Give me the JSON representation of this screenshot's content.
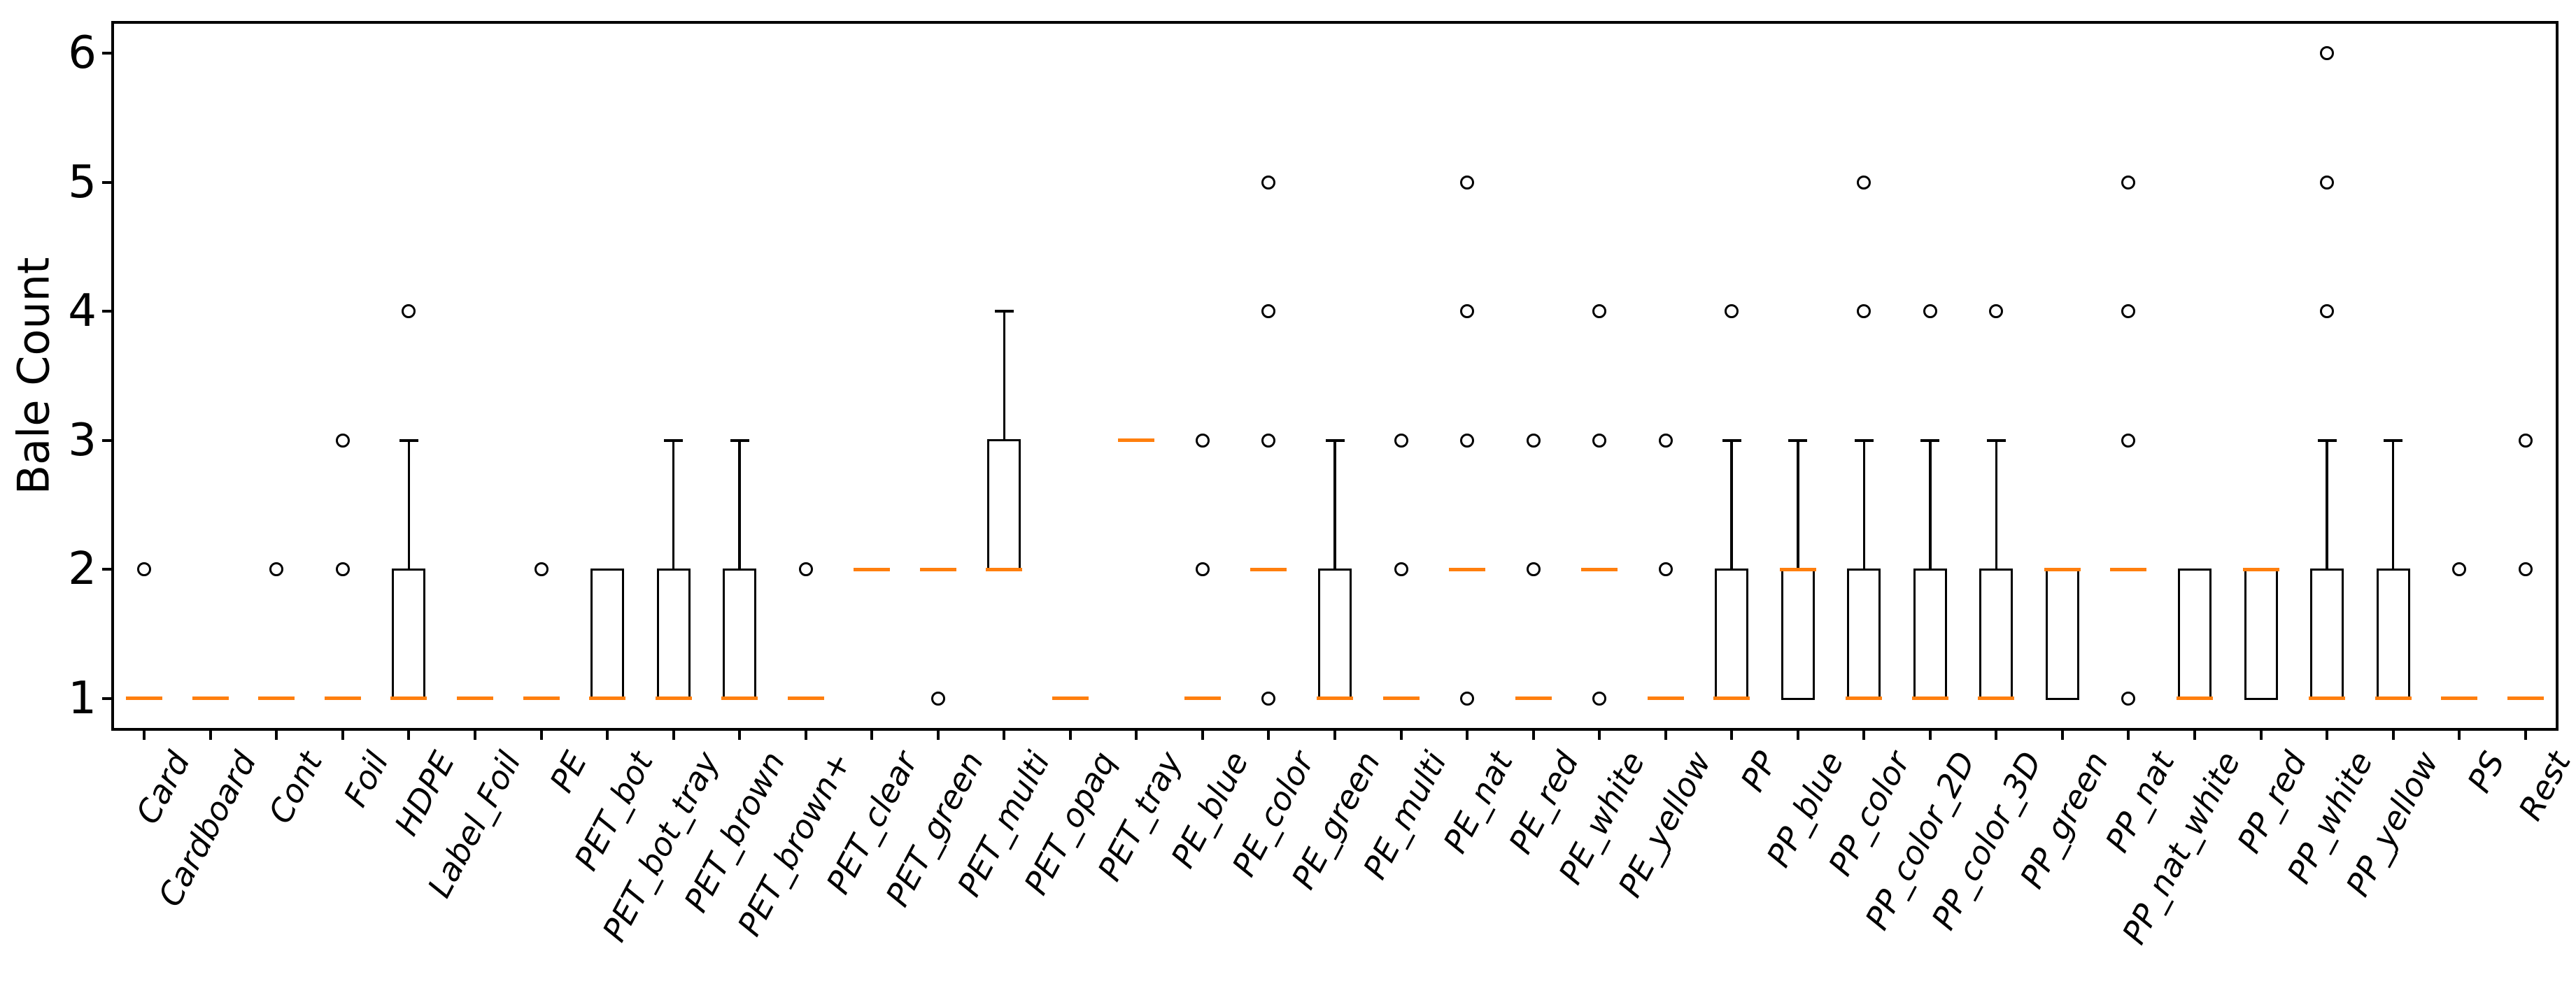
{
  "figure": {
    "background": "#ffffff",
    "axis_color": "#000000"
  },
  "chart_data": {
    "type": "boxplot",
    "title": "",
    "xlabel": "",
    "ylabel": "Bale Count",
    "ylim": [
      0.75,
      6.25
    ],
    "yticks": [
      1,
      2,
      3,
      4,
      5,
      6
    ],
    "grid": false,
    "legend": "none",
    "median_color": "#ff7f0e",
    "box_edge_color": "#000000",
    "categories": [
      "Card",
      "Cardboard",
      "Cont",
      "Foil",
      "HDPE",
      "Label_Foil",
      "PE",
      "PET_bot",
      "PET_bot_tray",
      "PET_brown",
      "PET_brown+",
      "PET_clear",
      "PET_green",
      "PET_multi",
      "PET_opaq",
      "PET_tray",
      "PE_blue",
      "PE_color",
      "PE_green",
      "PE_multi",
      "PE_nat",
      "PE_red",
      "PE_white",
      "PE_yellow",
      "PP",
      "PP_blue",
      "PP_color",
      "PP_color_2D",
      "PP_color_3D",
      "PP_green",
      "PP_nat",
      "PP_nat_white",
      "PP_red",
      "PP_white",
      "PP_yellow",
      "PS",
      "Rest"
    ],
    "series": [
      {
        "label": "Card",
        "whislo": 1,
        "q1": 1,
        "med": 1,
        "q3": 1,
        "whishi": 1,
        "outliers": [
          2
        ]
      },
      {
        "label": "Cardboard",
        "whislo": 1,
        "q1": 1,
        "med": 1,
        "q3": 1,
        "whishi": 1,
        "outliers": []
      },
      {
        "label": "Cont",
        "whislo": 1,
        "q1": 1,
        "med": 1,
        "q3": 1,
        "whishi": 1,
        "outliers": [
          2
        ]
      },
      {
        "label": "Foil",
        "whislo": 1,
        "q1": 1,
        "med": 1,
        "q3": 1,
        "whishi": 1,
        "outliers": [
          2,
          3
        ]
      },
      {
        "label": "HDPE",
        "whislo": 1,
        "q1": 1,
        "med": 1,
        "q3": 2,
        "whishi": 3,
        "outliers": [
          4
        ]
      },
      {
        "label": "Label_Foil",
        "whislo": 1,
        "q1": 1,
        "med": 1,
        "q3": 1,
        "whishi": 1,
        "outliers": []
      },
      {
        "label": "PE",
        "whislo": 1,
        "q1": 1,
        "med": 1,
        "q3": 1,
        "whishi": 1,
        "outliers": [
          2
        ]
      },
      {
        "label": "PET_bot",
        "whislo": 1,
        "q1": 1,
        "med": 1,
        "q3": 2,
        "whishi": 2,
        "outliers": []
      },
      {
        "label": "PET_bot_tray",
        "whislo": 1,
        "q1": 1,
        "med": 1,
        "q3": 2,
        "whishi": 3,
        "outliers": []
      },
      {
        "label": "PET_brown",
        "whislo": 1,
        "q1": 1,
        "med": 1,
        "q3": 2,
        "whishi": 3,
        "outliers": []
      },
      {
        "label": "PET_brown+",
        "whislo": 1,
        "q1": 1,
        "med": 1,
        "q3": 1,
        "whishi": 1,
        "outliers": [
          2
        ]
      },
      {
        "label": "PET_clear",
        "whislo": 2,
        "q1": 2,
        "med": 2,
        "q3": 2,
        "whishi": 2,
        "outliers": []
      },
      {
        "label": "PET_green",
        "whislo": 2,
        "q1": 2,
        "med": 2,
        "q3": 2,
        "whishi": 2,
        "outliers": [
          1
        ]
      },
      {
        "label": "PET_multi",
        "whislo": 2,
        "q1": 2,
        "med": 2,
        "q3": 3,
        "whishi": 4,
        "outliers": []
      },
      {
        "label": "PET_opaq",
        "whislo": 1,
        "q1": 1,
        "med": 1,
        "q3": 1,
        "whishi": 1,
        "outliers": []
      },
      {
        "label": "PET_tray",
        "whislo": 3,
        "q1": 3,
        "med": 3,
        "q3": 3,
        "whishi": 3,
        "outliers": []
      },
      {
        "label": "PE_blue",
        "whislo": 1,
        "q1": 1,
        "med": 1,
        "q3": 1,
        "whishi": 1,
        "outliers": [
          2,
          3
        ]
      },
      {
        "label": "PE_color",
        "whislo": 2,
        "q1": 2,
        "med": 2,
        "q3": 2,
        "whishi": 2,
        "outliers": [
          1,
          3,
          4,
          5
        ]
      },
      {
        "label": "PE_green",
        "whislo": 1,
        "q1": 1,
        "med": 1,
        "q3": 2,
        "whishi": 3,
        "outliers": []
      },
      {
        "label": "PE_multi",
        "whislo": 1,
        "q1": 1,
        "med": 1,
        "q3": 1,
        "whishi": 1,
        "outliers": [
          2,
          3
        ]
      },
      {
        "label": "PE_nat",
        "whislo": 2,
        "q1": 2,
        "med": 2,
        "q3": 2,
        "whishi": 2,
        "outliers": [
          1,
          3,
          4,
          5
        ]
      },
      {
        "label": "PE_red",
        "whislo": 1,
        "q1": 1,
        "med": 1,
        "q3": 1,
        "whishi": 1,
        "outliers": [
          2,
          3
        ]
      },
      {
        "label": "PE_white",
        "whislo": 2,
        "q1": 2,
        "med": 2,
        "q3": 2,
        "whishi": 2,
        "outliers": [
          1,
          3,
          4
        ]
      },
      {
        "label": "PE_yellow",
        "whislo": 1,
        "q1": 1,
        "med": 1,
        "q3": 1,
        "whishi": 1,
        "outliers": [
          2,
          3
        ]
      },
      {
        "label": "PP",
        "whislo": 1,
        "q1": 1,
        "med": 1,
        "q3": 2,
        "whishi": 3,
        "outliers": [
          4
        ]
      },
      {
        "label": "PP_blue",
        "whislo": 1,
        "q1": 1,
        "med": 2,
        "q3": 2,
        "whishi": 3,
        "outliers": []
      },
      {
        "label": "PP_color",
        "whislo": 1,
        "q1": 1,
        "med": 1,
        "q3": 2,
        "whishi": 3,
        "outliers": [
          4,
          5
        ]
      },
      {
        "label": "PP_color_2D",
        "whislo": 1,
        "q1": 1,
        "med": 1,
        "q3": 2,
        "whishi": 3,
        "outliers": [
          4
        ]
      },
      {
        "label": "PP_color_3D",
        "whislo": 1,
        "q1": 1,
        "med": 1,
        "q3": 2,
        "whishi": 3,
        "outliers": [
          4
        ]
      },
      {
        "label": "PP_green",
        "whislo": 1,
        "q1": 1,
        "med": 2,
        "q3": 2,
        "whishi": 2,
        "outliers": []
      },
      {
        "label": "PP_nat",
        "whislo": 2,
        "q1": 2,
        "med": 2,
        "q3": 2,
        "whishi": 2,
        "outliers": [
          1,
          3,
          4,
          5
        ]
      },
      {
        "label": "PP_nat_white",
        "whislo": 1,
        "q1": 1,
        "med": 1,
        "q3": 2,
        "whishi": 2,
        "outliers": []
      },
      {
        "label": "PP_red",
        "whislo": 1,
        "q1": 1,
        "med": 2,
        "q3": 2,
        "whishi": 2,
        "outliers": []
      },
      {
        "label": "PP_white",
        "whislo": 1,
        "q1": 1,
        "med": 1,
        "q3": 2,
        "whishi": 3,
        "outliers": [
          4,
          5,
          6
        ]
      },
      {
        "label": "PP_yellow",
        "whislo": 1,
        "q1": 1,
        "med": 1,
        "q3": 2,
        "whishi": 3,
        "outliers": []
      },
      {
        "label": "PS",
        "whislo": 1,
        "q1": 1,
        "med": 1,
        "q3": 1,
        "whishi": 1,
        "outliers": [
          2
        ]
      },
      {
        "label": "Rest",
        "whislo": 1,
        "q1": 1,
        "med": 1,
        "q3": 1,
        "whishi": 1,
        "outliers": [
          2,
          3
        ]
      }
    ]
  }
}
